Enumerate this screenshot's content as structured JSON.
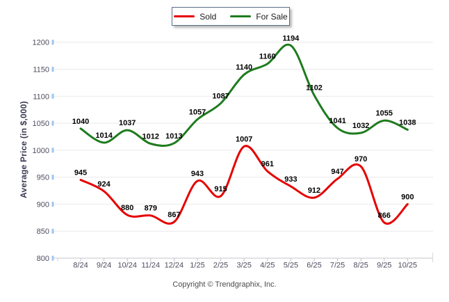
{
  "footer": {
    "copyright": "Copyright © Trendgraphix, Inc."
  },
  "chart_data": {
    "type": "line",
    "title": "",
    "xlabel": "",
    "ylabel": "Average Price (in $,000)",
    "ylim": [
      800,
      1200
    ],
    "yticks": [
      800,
      850,
      900,
      950,
      1000,
      1050,
      1100,
      1150,
      1200
    ],
    "grid": "horizontal",
    "legend_position": "top-center",
    "line_style": "smooth",
    "categories": [
      "8/24",
      "9/24",
      "10/24",
      "11/24",
      "12/24",
      "1/25",
      "2/25",
      "3/25",
      "4/25",
      "5/25",
      "6/25",
      "7/25",
      "8/25",
      "9/25",
      "10/25"
    ],
    "series": [
      {
        "name": "Sold",
        "color": "#e60000",
        "values": [
          945,
          924,
          880,
          879,
          867,
          943,
          915,
          1007,
          961,
          933,
          912,
          947,
          970,
          866,
          900
        ]
      },
      {
        "name": "For Sale",
        "color": "#1e7b1e",
        "values": [
          1040,
          1014,
          1037,
          1012,
          1013,
          1057,
          1087,
          1140,
          1160,
          1194,
          1102,
          1041,
          1032,
          1055,
          1038
        ]
      }
    ]
  }
}
